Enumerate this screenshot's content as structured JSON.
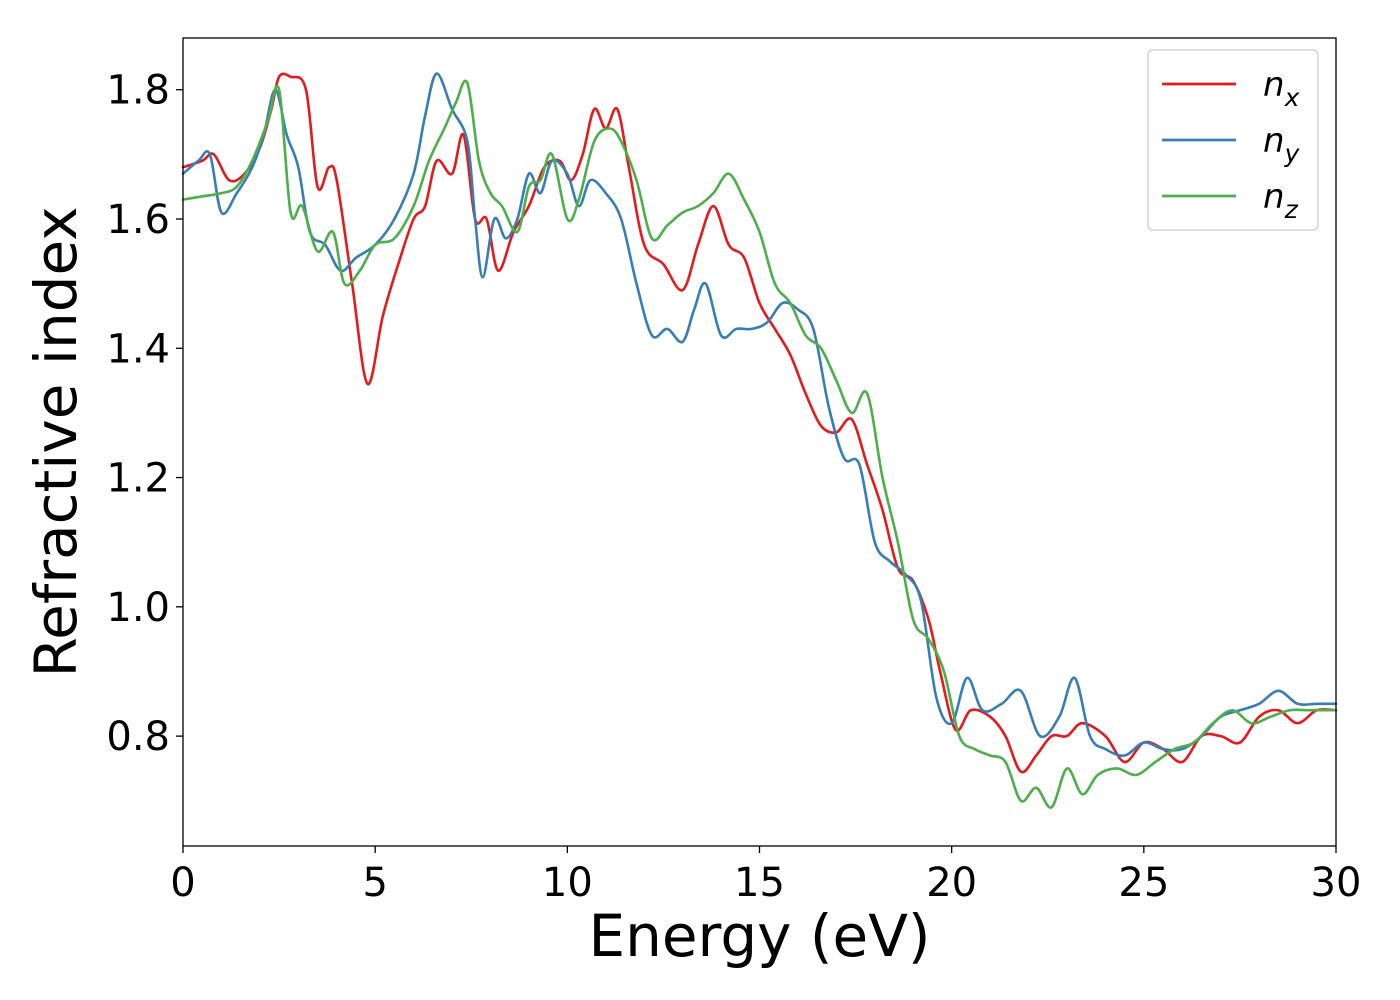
{
  "chart_data": {
    "type": "line",
    "title": "",
    "xlabel": "Energy (eV)",
    "ylabel": "Refractive index",
    "xlim": [
      0,
      30
    ],
    "ylim": [
      0.63,
      1.88
    ],
    "xticks": [
      0,
      5,
      10,
      15,
      20,
      25,
      30
    ],
    "xtick_labels": [
      "0",
      "5",
      "10",
      "15",
      "20",
      "25",
      "30"
    ],
    "yticks": [
      0.8,
      1.0,
      1.2,
      1.4,
      1.6,
      1.8
    ],
    "ytick_labels": [
      "0.8",
      "1.0",
      "1.2",
      "1.4",
      "1.6",
      "1.8"
    ],
    "grid": false,
    "legend_position": "top-right",
    "series": [
      {
        "name": "n_x",
        "legend": {
          "base": "n",
          "sub": "x"
        },
        "color": "#e41a1c",
        "x": [
          0,
          0.5,
          0.8,
          1.2,
          1.6,
          2.0,
          2.3,
          2.5,
          2.8,
          3.2,
          3.5,
          3.8,
          4.0,
          4.4,
          4.8,
          5.2,
          5.6,
          6.0,
          6.3,
          6.6,
          7.0,
          7.3,
          7.6,
          7.9,
          8.2,
          8.6,
          9.0,
          9.4,
          9.8,
          10.1,
          10.4,
          10.7,
          11.0,
          11.3,
          11.6,
          12.0,
          12.5,
          13.0,
          13.4,
          13.8,
          14.2,
          14.6,
          15.0,
          15.4,
          15.8,
          16.2,
          16.6,
          17.0,
          17.4,
          17.8,
          18.2,
          18.6,
          19.0,
          19.4,
          19.7,
          20.1,
          20.5,
          21.0,
          21.4,
          21.8,
          22.2,
          22.6,
          23.0,
          23.4,
          24.0,
          24.5,
          25.0,
          25.5,
          26.0,
          26.5,
          27.0,
          27.5,
          28.0,
          28.5,
          29.0,
          29.5,
          30.0
        ],
        "y": [
          1.68,
          1.69,
          1.7,
          1.66,
          1.67,
          1.71,
          1.77,
          1.82,
          1.82,
          1.8,
          1.65,
          1.68,
          1.66,
          1.5,
          1.345,
          1.45,
          1.53,
          1.6,
          1.62,
          1.69,
          1.67,
          1.73,
          1.6,
          1.6,
          1.52,
          1.58,
          1.62,
          1.68,
          1.69,
          1.66,
          1.7,
          1.77,
          1.74,
          1.77,
          1.68,
          1.56,
          1.53,
          1.49,
          1.56,
          1.62,
          1.56,
          1.54,
          1.47,
          1.43,
          1.39,
          1.33,
          1.28,
          1.27,
          1.29,
          1.22,
          1.15,
          1.06,
          1.04,
          0.98,
          0.9,
          0.81,
          0.84,
          0.83,
          0.8,
          0.745,
          0.77,
          0.8,
          0.8,
          0.82,
          0.8,
          0.76,
          0.79,
          0.78,
          0.76,
          0.8,
          0.8,
          0.79,
          0.83,
          0.84,
          0.82,
          0.84,
          0.84
        ]
      },
      {
        "name": "n_y",
        "legend": {
          "base": "n",
          "sub": "y"
        },
        "color": "#377eb8",
        "x": [
          0,
          0.4,
          0.7,
          1.0,
          1.4,
          1.8,
          2.1,
          2.4,
          2.7,
          3.0,
          3.3,
          3.7,
          4.1,
          4.5,
          5.0,
          5.5,
          6.0,
          6.3,
          6.6,
          7.0,
          7.4,
          7.6,
          7.8,
          8.1,
          8.4,
          8.7,
          9.0,
          9.3,
          9.6,
          10.0,
          10.3,
          10.6,
          11.0,
          11.4,
          11.8,
          12.2,
          12.6,
          13.0,
          13.3,
          13.6,
          14.0,
          14.4,
          14.8,
          15.2,
          15.6,
          16.0,
          16.4,
          16.8,
          17.2,
          17.6,
          18.0,
          18.4,
          18.8,
          19.2,
          19.6,
          20.0,
          20.4,
          20.8,
          21.3,
          21.8,
          22.3,
          22.8,
          23.2,
          23.6,
          24.0,
          24.5,
          25.0,
          25.5,
          26.0,
          26.5,
          27.0,
          27.5,
          28.0,
          28.5,
          29.0,
          29.5,
          30.0
        ],
        "y": [
          1.67,
          1.69,
          1.7,
          1.61,
          1.64,
          1.68,
          1.73,
          1.8,
          1.73,
          1.68,
          1.58,
          1.56,
          1.52,
          1.54,
          1.56,
          1.6,
          1.67,
          1.76,
          1.825,
          1.77,
          1.72,
          1.6,
          1.51,
          1.6,
          1.57,
          1.6,
          1.67,
          1.64,
          1.69,
          1.67,
          1.62,
          1.66,
          1.64,
          1.6,
          1.5,
          1.42,
          1.43,
          1.41,
          1.46,
          1.5,
          1.42,
          1.43,
          1.43,
          1.44,
          1.47,
          1.46,
          1.43,
          1.31,
          1.23,
          1.22,
          1.1,
          1.07,
          1.05,
          1.01,
          0.86,
          0.82,
          0.89,
          0.84,
          0.85,
          0.87,
          0.8,
          0.83,
          0.89,
          0.8,
          0.78,
          0.77,
          0.79,
          0.78,
          0.78,
          0.8,
          0.83,
          0.84,
          0.85,
          0.87,
          0.85,
          0.85,
          0.85
        ]
      },
      {
        "name": "n_z",
        "legend": {
          "base": "n",
          "sub": "z"
        },
        "color": "#4daf4a",
        "x": [
          0,
          0.5,
          1.0,
          1.4,
          1.8,
          2.2,
          2.5,
          2.8,
          3.1,
          3.5,
          3.9,
          4.2,
          4.6,
          5.0,
          5.5,
          6.0,
          6.4,
          6.8,
          7.1,
          7.4,
          7.7,
          8.0,
          8.3,
          8.7,
          9.0,
          9.3,
          9.6,
          10.0,
          10.3,
          10.7,
          11.1,
          11.4,
          11.8,
          12.2,
          12.6,
          13.0,
          13.4,
          13.8,
          14.2,
          14.6,
          15.0,
          15.4,
          15.8,
          16.2,
          16.6,
          17.0,
          17.4,
          17.8,
          18.2,
          18.6,
          19.0,
          19.4,
          19.8,
          20.2,
          20.6,
          21.0,
          21.4,
          21.8,
          22.2,
          22.6,
          23.0,
          23.4,
          23.8,
          24.3,
          24.8,
          25.3,
          25.8,
          26.3,
          26.8,
          27.3,
          27.8,
          28.3,
          28.8,
          29.3,
          29.6,
          30.0
        ],
        "y": [
          1.63,
          1.635,
          1.64,
          1.65,
          1.69,
          1.75,
          1.8,
          1.61,
          1.62,
          1.55,
          1.58,
          1.5,
          1.52,
          1.56,
          1.57,
          1.62,
          1.69,
          1.74,
          1.78,
          1.81,
          1.69,
          1.64,
          1.62,
          1.58,
          1.65,
          1.66,
          1.7,
          1.6,
          1.63,
          1.72,
          1.74,
          1.72,
          1.66,
          1.57,
          1.59,
          1.61,
          1.62,
          1.64,
          1.67,
          1.63,
          1.58,
          1.5,
          1.47,
          1.42,
          1.4,
          1.35,
          1.3,
          1.33,
          1.2,
          1.1,
          0.98,
          0.95,
          0.9,
          0.8,
          0.78,
          0.77,
          0.76,
          0.7,
          0.72,
          0.69,
          0.75,
          0.71,
          0.74,
          0.75,
          0.74,
          0.76,
          0.78,
          0.79,
          0.82,
          0.84,
          0.82,
          0.83,
          0.84,
          0.84,
          0.84,
          0.84
        ]
      }
    ]
  }
}
